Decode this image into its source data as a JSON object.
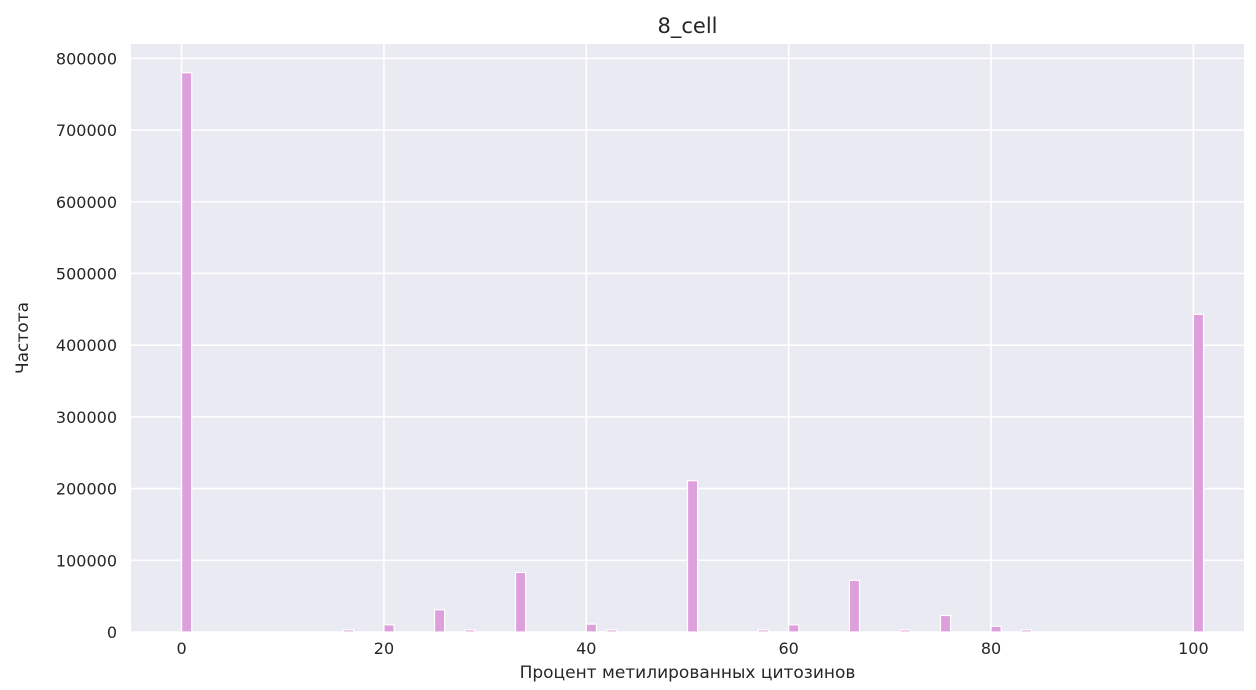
{
  "chart_data": {
    "type": "bar",
    "title": "8_cell",
    "xlabel": "Процент метилированных цитозинов",
    "ylabel": "Частота",
    "xlim": [
      -5,
      105
    ],
    "ylim": [
      0,
      820000
    ],
    "x_ticks": [
      0,
      20,
      40,
      60,
      80,
      100
    ],
    "y_ticks": [
      0,
      100000,
      200000,
      300000,
      400000,
      500000,
      600000,
      700000,
      800000
    ],
    "x_tick_labels": [
      "0",
      "20",
      "40",
      "60",
      "80",
      "100"
    ],
    "y_tick_labels": [
      "0",
      "100000",
      "200000",
      "300000",
      "400000",
      "500000",
      "600000",
      "700000",
      "800000"
    ],
    "grid": true,
    "bar_width": 1,
    "colors": {
      "bar": "#dda0dd",
      "bar_edge": "#ffffff",
      "plot_background": "#eaeaf2",
      "grid": "#ffffff",
      "text": "#262626"
    },
    "x": [
      0.5,
      16.5,
      20.5,
      25.5,
      28.5,
      33.5,
      40.5,
      42.5,
      50.5,
      57.5,
      60.5,
      66.5,
      71.5,
      75.5,
      80.5,
      83.5,
      100.5
    ],
    "values": [
      780000,
      3000,
      10000,
      31000,
      3000,
      83000,
      11000,
      3000,
      211000,
      3000,
      10000,
      72000,
      3000,
      23000,
      8000,
      3000,
      443000
    ]
  }
}
